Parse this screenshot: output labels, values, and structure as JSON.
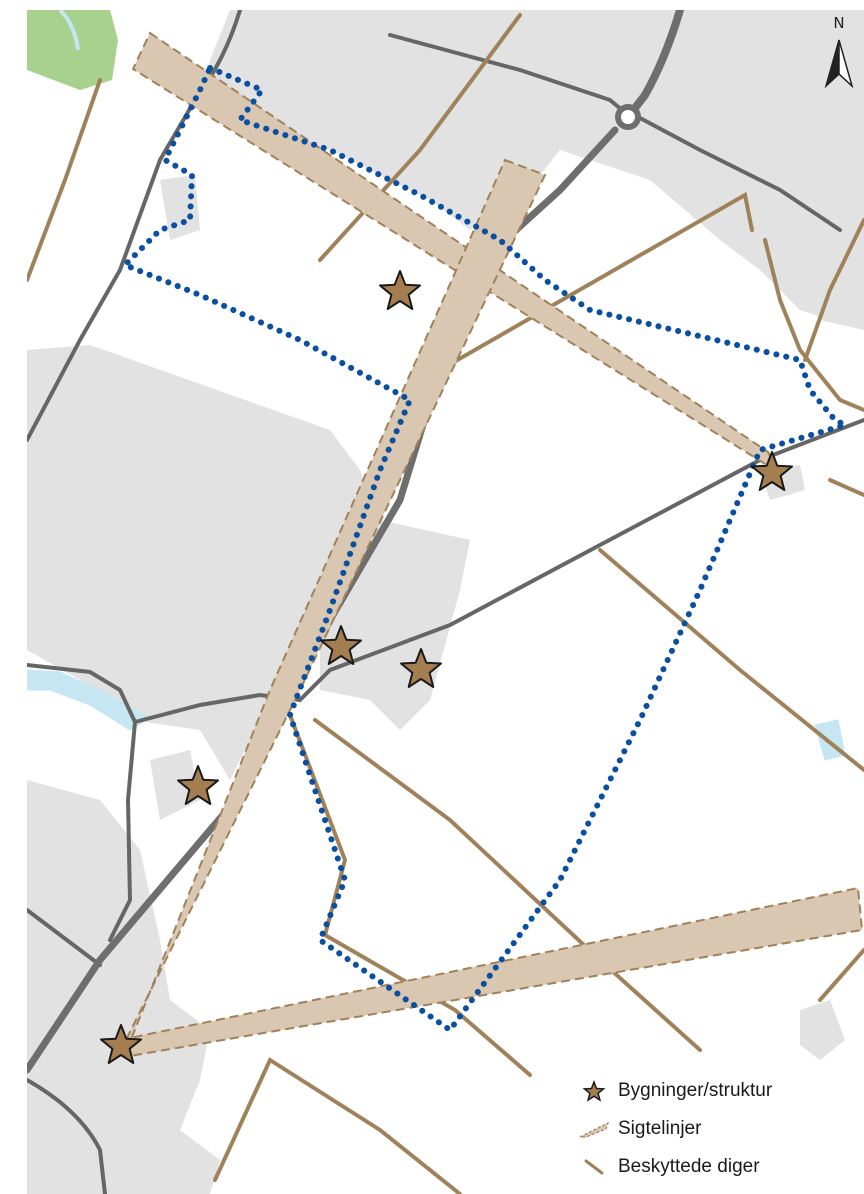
{
  "map": {
    "north_label": "N",
    "colors": {
      "background": "#ffffff",
      "built_area": "#e2e2e2",
      "green_area": "#a9d18e",
      "water": "#c5e6f2",
      "road": "#666666",
      "main_road": "#6e6e6e",
      "dike": "#a0825a",
      "sightline_fill": "#d9c7b1",
      "sightline_edge": "#a0825a",
      "boundary": "#0b4fa0",
      "star_fill": "#a47e50",
      "star_stroke": "#1a1a1a"
    },
    "features": {
      "buildings_count": 6,
      "sightlines_count": 3,
      "boundary_style": "dotted"
    }
  },
  "legend": {
    "items": [
      {
        "label": "Bygninger/struktur",
        "icon": "star-icon"
      },
      {
        "label": "Sigtelinjer",
        "icon": "sightline-icon"
      },
      {
        "label": "Beskyttede diger",
        "icon": "dike-icon"
      }
    ]
  }
}
